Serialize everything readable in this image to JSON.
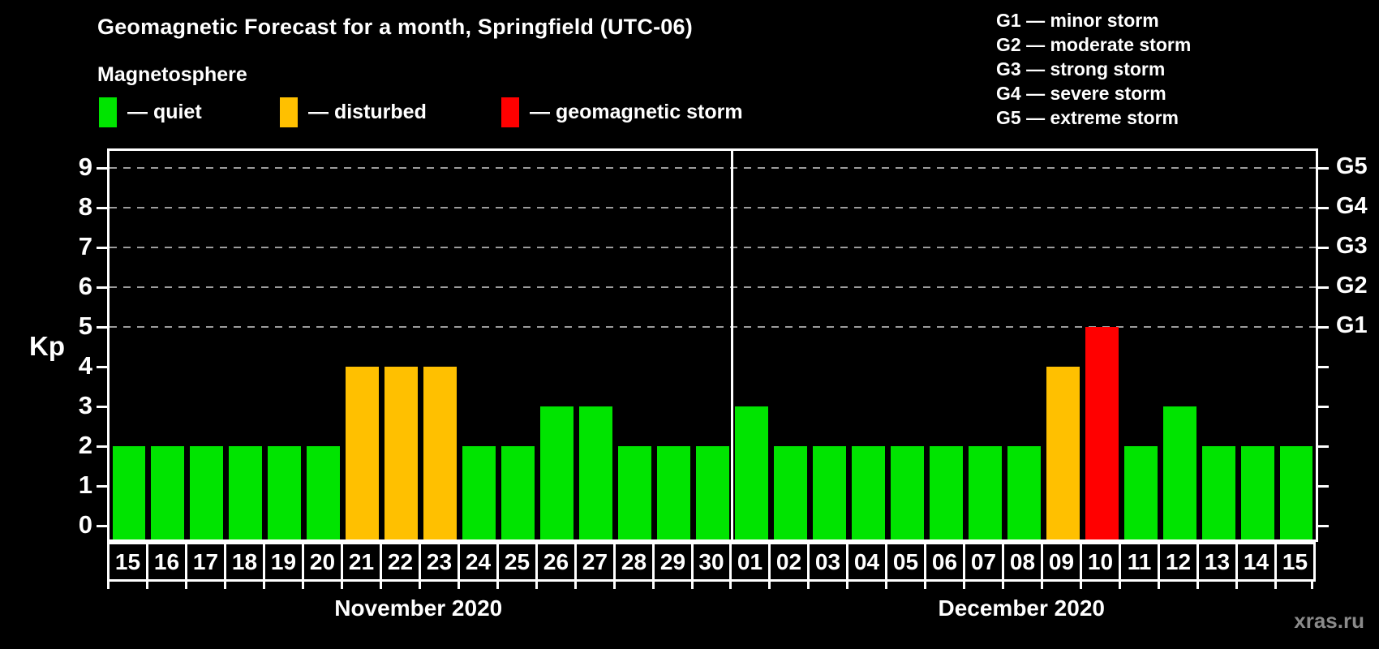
{
  "title": "Geomagnetic Forecast for a month, Springfield (UTC-06)",
  "subtitle": "Magnetosphere",
  "legend": {
    "items": [
      {
        "name": "quiet",
        "label": "— quiet",
        "color": "#00E400"
      },
      {
        "name": "disturbed",
        "label": "— disturbed",
        "color": "#FFC000"
      },
      {
        "name": "storm",
        "label": "— geomagnetic storm",
        "color": "#FF0000"
      }
    ]
  },
  "g_scale": [
    "G1 — minor storm",
    "G2 — moderate storm",
    "G3 — strong storm",
    "G4 — severe storm",
    "G5 — extreme storm"
  ],
  "watermark": "xras.ru",
  "chart_data": {
    "type": "bar",
    "title": "Geomagnetic Forecast for a month, Springfield (UTC-06)",
    "ylabel": "Kp",
    "ylim": [
      0,
      9
    ],
    "yticks": [
      0,
      1,
      2,
      3,
      4,
      5,
      6,
      7,
      8,
      9
    ],
    "gridlines": [
      5,
      6,
      7,
      8,
      9
    ],
    "grid_style": "dashed",
    "legend_position": "top-left",
    "right_axis_labels": [
      {
        "value": 5,
        "label": "G1"
      },
      {
        "value": 6,
        "label": "G2"
      },
      {
        "value": 7,
        "label": "G3"
      },
      {
        "value": 8,
        "label": "G4"
      },
      {
        "value": 9,
        "label": "G5"
      }
    ],
    "status_colors": {
      "quiet": "#00E400",
      "disturbed": "#FFC000",
      "storm": "#FF0000"
    },
    "months": [
      {
        "label": "November 2020",
        "bars": [
          {
            "day": "15",
            "kp": 2,
            "status": "quiet"
          },
          {
            "day": "16",
            "kp": 2,
            "status": "quiet"
          },
          {
            "day": "17",
            "kp": 2,
            "status": "quiet"
          },
          {
            "day": "18",
            "kp": 2,
            "status": "quiet"
          },
          {
            "day": "19",
            "kp": 2,
            "status": "quiet"
          },
          {
            "day": "20",
            "kp": 2,
            "status": "quiet"
          },
          {
            "day": "21",
            "kp": 4,
            "status": "disturbed"
          },
          {
            "day": "22",
            "kp": 4,
            "status": "disturbed"
          },
          {
            "day": "23",
            "kp": 4,
            "status": "disturbed"
          },
          {
            "day": "24",
            "kp": 2,
            "status": "quiet"
          },
          {
            "day": "25",
            "kp": 2,
            "status": "quiet"
          },
          {
            "day": "26",
            "kp": 3,
            "status": "quiet"
          },
          {
            "day": "27",
            "kp": 3,
            "status": "quiet"
          },
          {
            "day": "28",
            "kp": 2,
            "status": "quiet"
          },
          {
            "day": "29",
            "kp": 2,
            "status": "quiet"
          },
          {
            "day": "30",
            "kp": 2,
            "status": "quiet"
          }
        ]
      },
      {
        "label": "December 2020",
        "bars": [
          {
            "day": "01",
            "kp": 3,
            "status": "quiet"
          },
          {
            "day": "02",
            "kp": 2,
            "status": "quiet"
          },
          {
            "day": "03",
            "kp": 2,
            "status": "quiet"
          },
          {
            "day": "04",
            "kp": 2,
            "status": "quiet"
          },
          {
            "day": "05",
            "kp": 2,
            "status": "quiet"
          },
          {
            "day": "06",
            "kp": 2,
            "status": "quiet"
          },
          {
            "day": "07",
            "kp": 2,
            "status": "quiet"
          },
          {
            "day": "08",
            "kp": 2,
            "status": "quiet"
          },
          {
            "day": "09",
            "kp": 4,
            "status": "disturbed"
          },
          {
            "day": "10",
            "kp": 5,
            "status": "storm"
          },
          {
            "day": "11",
            "kp": 2,
            "status": "quiet"
          },
          {
            "day": "12",
            "kp": 3,
            "status": "quiet"
          },
          {
            "day": "13",
            "kp": 2,
            "status": "quiet"
          },
          {
            "day": "14",
            "kp": 2,
            "status": "quiet"
          },
          {
            "day": "15",
            "kp": 2,
            "status": "quiet"
          }
        ]
      }
    ]
  }
}
